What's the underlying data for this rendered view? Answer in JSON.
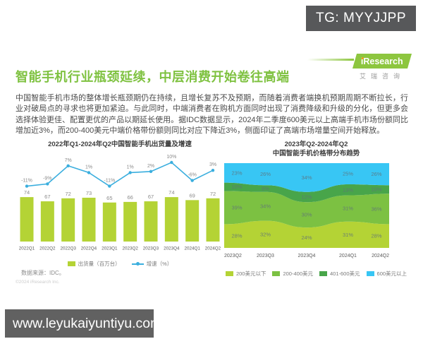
{
  "badge": {
    "text": "TG: MYYJJPP"
  },
  "logo": {
    "brand_i": "i",
    "brand_rest": "Research",
    "subtitle": "艾瑞咨询"
  },
  "page": {
    "title": "智能手机行业瓶颈延续，中层消费开始卷往高端",
    "body": "中国智能手机市场的整体增长瓶颈期仍在持续，且增长复苏不及预期，而随着消费者端换机预期周期不断拉长，行业对破局点的寻求也将更加紧迫。与此同时，中端消费者在购机方面同时出现了消费降级和升级的分化，但更多会选择体验更佳、配置更优的产品以期延长使用。据IDC数据显示，2024年二季度600美元以上高端手机市场份额同比增加近3%，而200-400美元中端价格带份额则同比对应下降近3%，侧面印证了高端市场增量空间开始释放。",
    "source": "数据来源：IDC。",
    "copyright": "©2024 iResearch Inc.",
    "watermark": "www.leyukaiyuntiyu.com"
  },
  "colors": {
    "accent_green": "#7fc241",
    "bar_green": "#b4d335",
    "mid_green": "#7cc142",
    "dark_green": "#48a54a",
    "cyan": "#38c6f4",
    "line_blue": "#3aaede",
    "label_gray": "#8a8a8a"
  },
  "chart_data": [
    {
      "type": "bar",
      "title": "2022年Q1-2024年Q2中国智能手机出货量及增速",
      "categories": [
        "2022Q1",
        "2022Q2",
        "2022Q3",
        "2022Q4",
        "2023Q1",
        "2023Q2",
        "2023Q3",
        "2023Q4",
        "2024Q1",
        "2024Q2"
      ],
      "series": [
        {
          "name": "出货量（百万台）",
          "type": "bar",
          "values": [
            74,
            67,
            72,
            73,
            65,
            66,
            67,
            74,
            69,
            72
          ],
          "color": "#b4d335"
        },
        {
          "name": "增速（%）",
          "type": "line",
          "values": [
            -11,
            -9,
            7,
            1,
            -11,
            1,
            2,
            10,
            -6,
            3
          ],
          "unit": "%",
          "color": "#3aaede"
        }
      ],
      "xlabel": "",
      "ylabel": "",
      "grid": false,
      "legend_position": "bottom"
    },
    {
      "type": "area",
      "title": "2023年Q2-2024年Q2",
      "subtitle": "中国智能手机价格带分布趋势",
      "categories": [
        "2023Q2",
        "2023Q3",
        "2023Q4",
        "2024Q1",
        "2024Q2"
      ],
      "stacked": true,
      "unit": "%",
      "ylim": [
        0,
        100
      ],
      "series_bottom_to_top": true,
      "series": [
        {
          "name": "200美元以下",
          "values": [
            28,
            32,
            24,
            31,
            28
          ],
          "color": "#b4d335"
        },
        {
          "name": "200-400美元",
          "values": [
            39,
            34,
            30,
            31,
            36
          ],
          "color": "#7cc142"
        },
        {
          "name": "401-600美元",
          "values": [
            10,
            8,
            12,
            13,
            10
          ],
          "color": "#48a54a"
        },
        {
          "name": "600美元以上",
          "values": [
            23,
            26,
            34,
            25,
            26
          ],
          "color": "#38c6f4"
        }
      ],
      "xlabel": "",
      "ylabel": "",
      "grid": false,
      "legend_position": "bottom"
    }
  ]
}
